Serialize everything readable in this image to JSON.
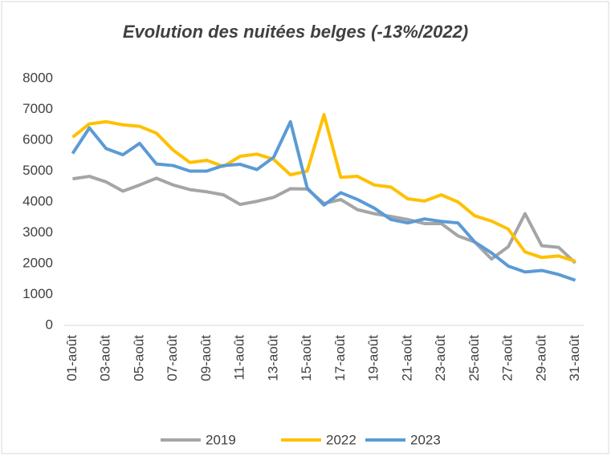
{
  "chart_data": {
    "type": "line",
    "title": "Evolution des nuitées belges (-13%/2022)",
    "categories": [
      "01-août",
      null,
      "03-août",
      null,
      "05-août",
      null,
      "07-août",
      null,
      "09-août",
      null,
      "11-août",
      null,
      "13-août",
      null,
      "15-août",
      null,
      "17-août",
      null,
      "19-août",
      null,
      "21-août",
      null,
      "23-août",
      null,
      "25-août",
      null,
      "27-août",
      null,
      "29-août",
      null,
      "31-août"
    ],
    "series": [
      {
        "name": "2019",
        "color": "#a5a5a5",
        "values": [
          4750,
          4830,
          4650,
          4350,
          4550,
          4770,
          4550,
          4400,
          4330,
          4230,
          3920,
          4020,
          4150,
          4430,
          4420,
          3950,
          4080,
          3750,
          3620,
          3530,
          3430,
          3300,
          3300,
          2900,
          2700,
          2150,
          2550,
          3620,
          2580,
          2530,
          2020
        ]
      },
      {
        "name": "2022",
        "color": "#ffc000",
        "values": [
          6100,
          6530,
          6600,
          6500,
          6450,
          6230,
          5680,
          5280,
          5350,
          5150,
          5480,
          5550,
          5380,
          4880,
          5000,
          6830,
          4800,
          4830,
          4550,
          4480,
          4100,
          4030,
          4230,
          4000,
          3550,
          3380,
          3120,
          2380,
          2200,
          2250,
          2080
        ]
      },
      {
        "name": "2023",
        "color": "#5b9bd5",
        "values": [
          5570,
          6400,
          5730,
          5530,
          5900,
          5230,
          5180,
          5000,
          5000,
          5180,
          5220,
          5050,
          5450,
          6600,
          4450,
          3900,
          4300,
          4080,
          3800,
          3430,
          3320,
          3450,
          3370,
          3320,
          2700,
          2350,
          1920,
          1730,
          1780,
          1650,
          1460
        ]
      }
    ],
    "ylim": [
      0,
      8000
    ],
    "yticks": [
      0,
      1000,
      2000,
      3000,
      4000,
      5000,
      6000,
      7000,
      8000
    ],
    "grid": false,
    "legend": "bottom"
  }
}
